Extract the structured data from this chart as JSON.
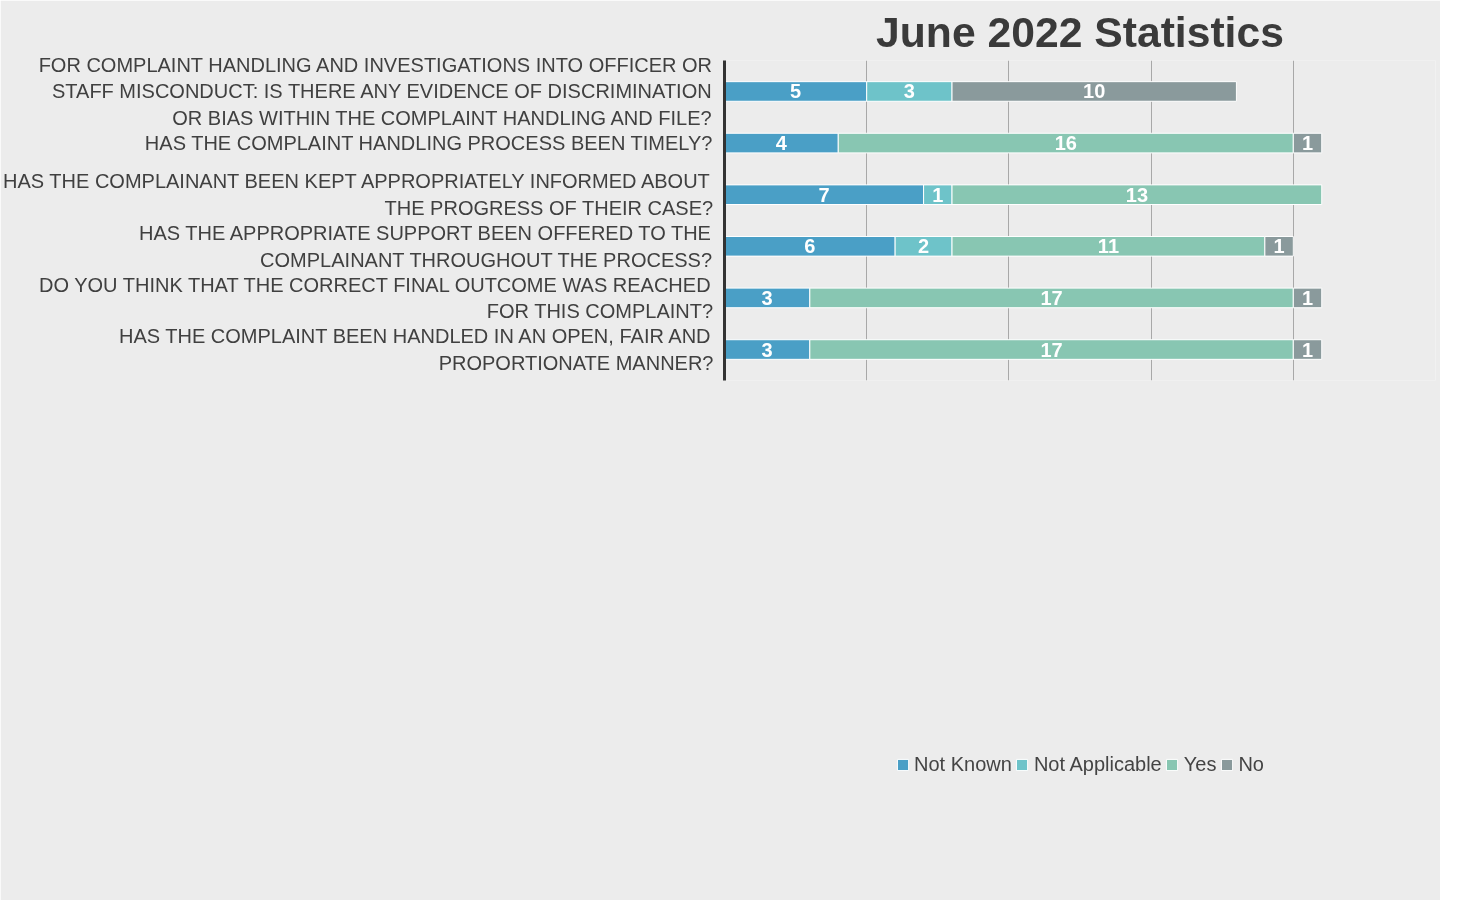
{
  "chart_data": {
    "type": "bar",
    "orientation": "horizontal",
    "stacked": true,
    "title": "June 2022 Statistics",
    "categories": [
      "FOR COMPLAINT HANDLING AND INVESTIGATIONS INTO OFFICER OR STAFF MISCONDUCT: IS THERE ANY EVIDENCE OF DISCRIMINATION OR BIAS WITHIN THE COMPLAINT HANDLING AND FILE?",
      "HAS THE COMPLAINT HANDLING PROCESS BEEN TIMELY?",
      "HAS THE COMPLAINANT BEEN KEPT APPROPRIATELY INFORMED ABOUT THE PROGRESS OF THEIR CASE?",
      "HAS THE APPROPRIATE SUPPORT BEEN OFFERED TO THE COMPLAINANT THROUGHOUT THE PROCESS?",
      "DO YOU THINK THAT THE CORRECT FINAL OUTCOME WAS REACHED FOR THIS COMPLAINT?",
      "HAS THE COMPLAINT BEEN HANDLED IN AN OPEN, FAIR AND PROPORTIONATE MANNER?"
    ],
    "series": [
      {
        "name": "Not Known",
        "color": "#4a9fc6",
        "values": [
          5,
          4,
          7,
          6,
          3,
          3
        ]
      },
      {
        "name": "Not Applicable",
        "color": "#6ec3c9",
        "values": [
          3,
          null,
          1,
          2,
          null,
          null
        ]
      },
      {
        "name": "Yes",
        "color": "#88c6b2",
        "values": [
          null,
          16,
          13,
          11,
          17,
          17
        ]
      },
      {
        "name": "No",
        "color": "#8a9a9c",
        "values": [
          10,
          1,
          null,
          1,
          1,
          1
        ]
      }
    ],
    "xlim": [
      0,
      25
    ],
    "xticks": [
      {
        "value": 0,
        "label": null
      },
      {
        "value": 5,
        "label": null
      },
      {
        "value": 10,
        "label": null
      },
      {
        "value": 15,
        "label": null
      },
      {
        "value": 20,
        "label": null
      },
      {
        "value": 25,
        "label": null
      }
    ],
    "tick_labels": "y",
    "grid": "x",
    "data_labels": true,
    "legend": "bottom"
  }
}
